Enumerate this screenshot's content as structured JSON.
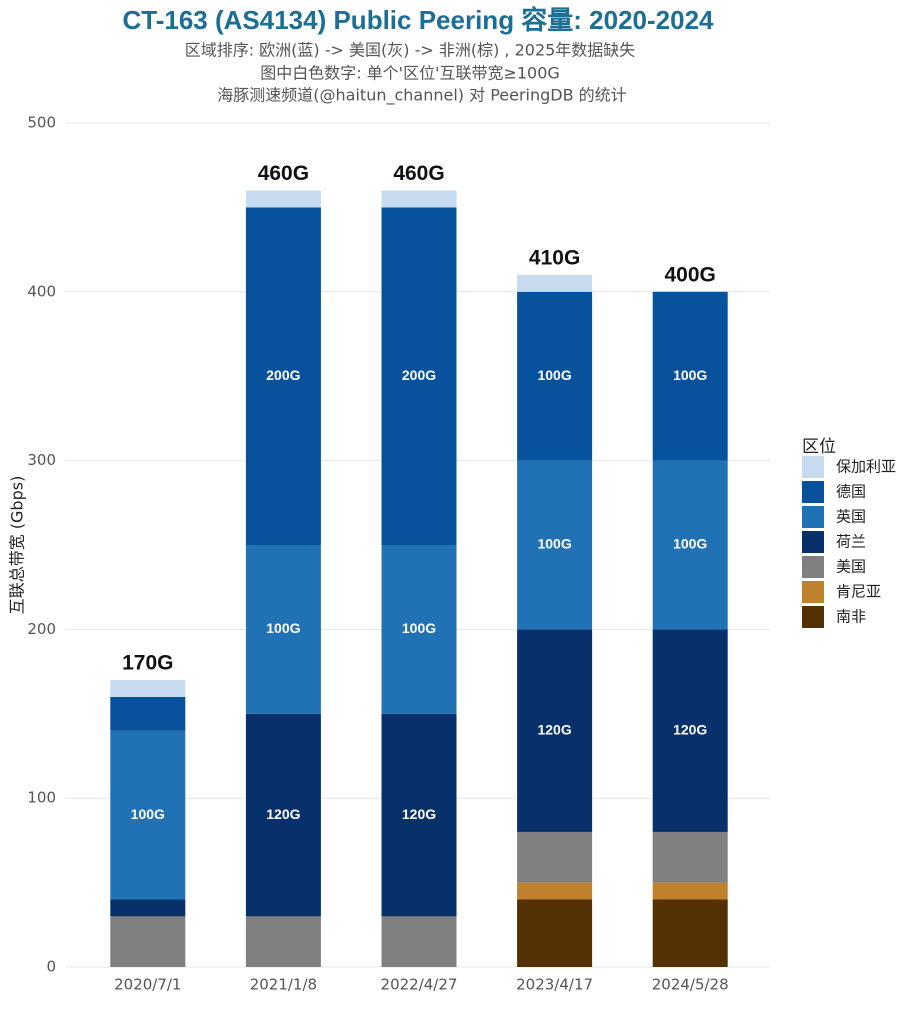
{
  "chart_data": {
    "type": "stacked_bar",
    "title": "CT-163 (AS4134) Public Peering 容量: 2020-2024",
    "subtitle": [
      "区域排序: 欧洲(蓝) -> 美国(灰) -> 非洲(棕) , 2025年数据缺失",
      "图中白色数字: 单个'区位'互联带宽≥100G",
      "海豚测速频道(@haitun_channel) 对 PeeringDB 的统计"
    ],
    "y_label": "互联总带宽 (Gbps)",
    "legend_title": "区位",
    "legend_position": "right",
    "grid": true,
    "categories": [
      "2020/7/1",
      "2021/1/8",
      "2022/4/27",
      "2023/4/17",
      "2024/5/28"
    ],
    "ylim": [
      0,
      500
    ],
    "yticks": [
      0,
      100,
      200,
      300,
      400,
      500
    ],
    "series": [
      {
        "name": "保加利亚",
        "color": "#c6dbef",
        "values": [
          10,
          10,
          10,
          10,
          0
        ],
        "value_labels": [
          null,
          null,
          null,
          null,
          null
        ]
      },
      {
        "name": "德国",
        "color": "#08519c",
        "values": [
          20,
          200,
          200,
          100,
          100
        ],
        "value_labels": [
          null,
          "200G",
          "200G",
          "100G",
          "100G"
        ]
      },
      {
        "name": "英国",
        "color": "#2171b5",
        "values": [
          100,
          100,
          100,
          100,
          100
        ],
        "value_labels": [
          "100G",
          "100G",
          "100G",
          "100G",
          "100G"
        ]
      },
      {
        "name": "荷兰",
        "color": "#08306b",
        "values": [
          10,
          120,
          120,
          120,
          120
        ],
        "value_labels": [
          null,
          "120G",
          "120G",
          "120G",
          "120G"
        ]
      },
      {
        "name": "美国",
        "color": "#808080",
        "values": [
          30,
          30,
          30,
          30,
          30
        ],
        "value_labels": [
          null,
          null,
          null,
          null,
          null
        ]
      },
      {
        "name": "肯尼亚",
        "color": "#bf812d",
        "values": [
          0,
          0,
          0,
          10,
          10
        ],
        "value_labels": [
          null,
          null,
          null,
          null,
          null
        ]
      },
      {
        "name": "南非",
        "color": "#543005",
        "values": [
          0,
          0,
          0,
          40,
          40
        ],
        "value_labels": [
          null,
          null,
          null,
          null,
          null
        ]
      }
    ],
    "totals": {
      "values": [
        170,
        460,
        460,
        410,
        400
      ],
      "value_labels": [
        "170G",
        "460G",
        "460G",
        "410G",
        "400G"
      ]
    }
  }
}
